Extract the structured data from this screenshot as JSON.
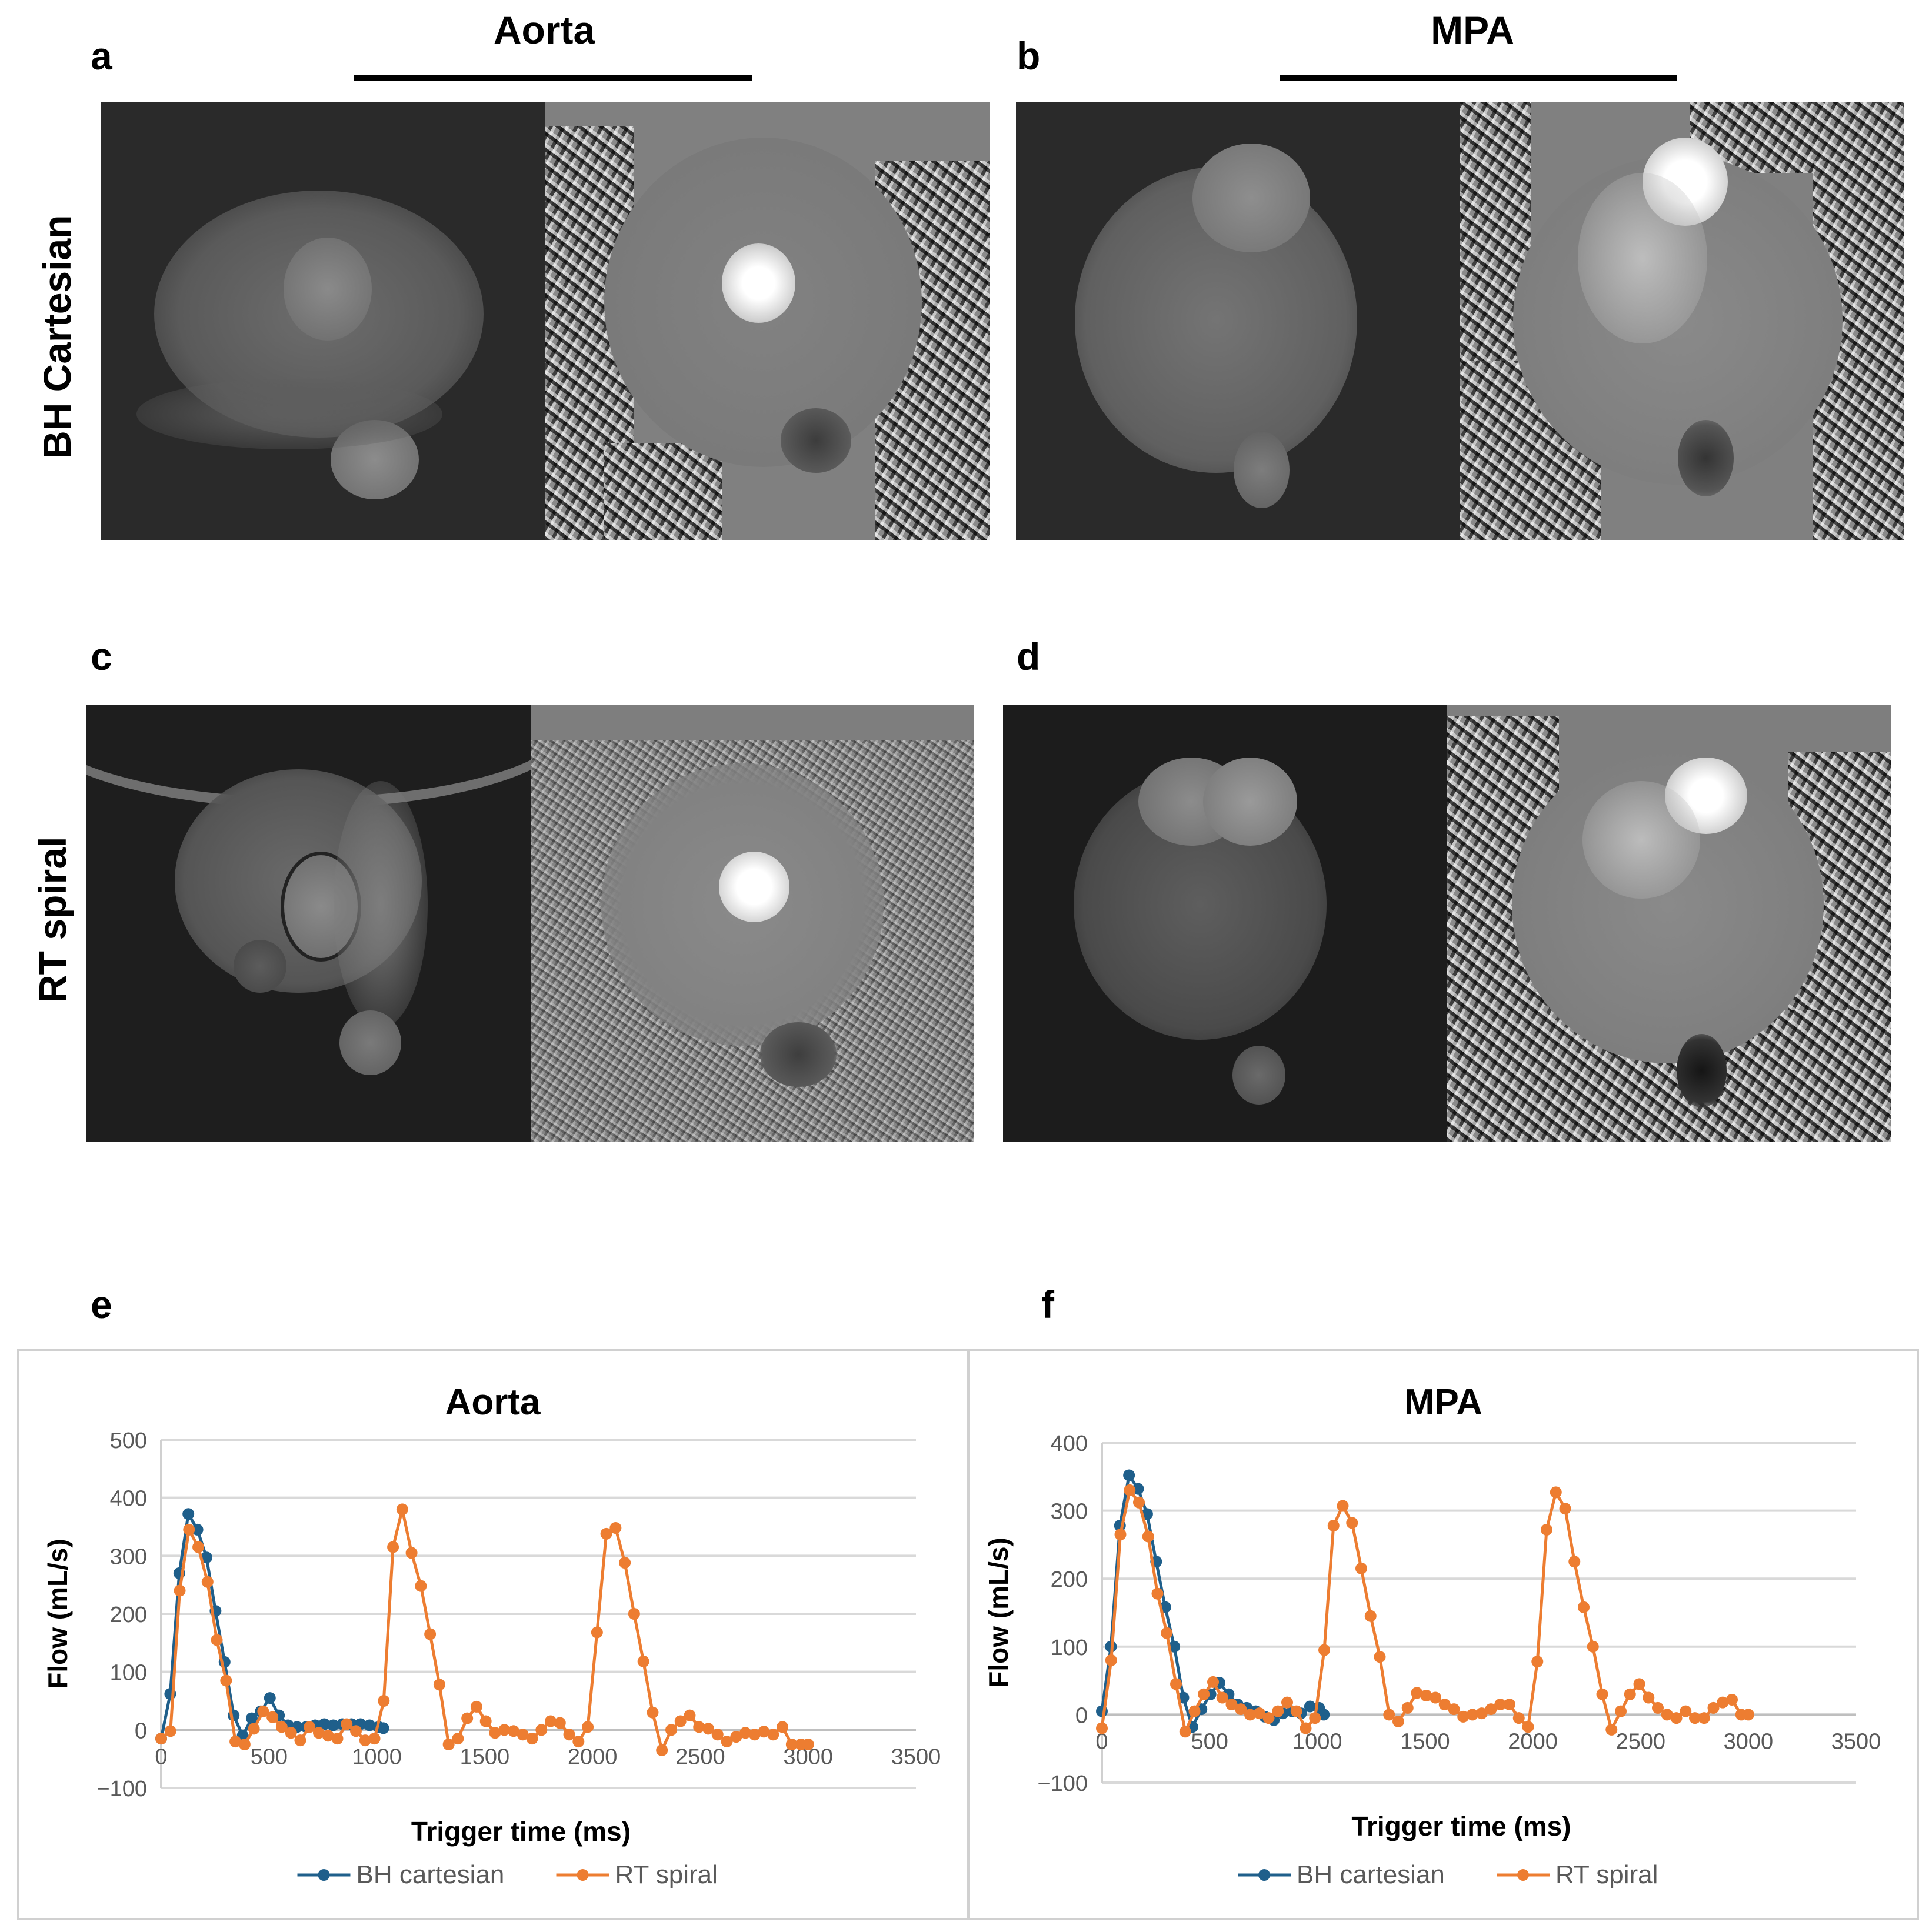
{
  "figure": {
    "panel_letters": {
      "a": "a",
      "b": "b",
      "c": "c",
      "d": "d",
      "e": "e",
      "f": "f"
    },
    "column_titles": {
      "left": "Aorta",
      "right": "MPA"
    },
    "row_labels": {
      "top": "BH Cartesian",
      "bottom": "RT spiral"
    },
    "image_panels": [
      {
        "id": "a",
        "vessel": "Aorta",
        "method": "BH Cartesian",
        "views": [
          "magnitude",
          "phase"
        ]
      },
      {
        "id": "b",
        "vessel": "MPA",
        "method": "BH Cartesian",
        "views": [
          "magnitude",
          "phase"
        ]
      },
      {
        "id": "c",
        "vessel": "Aorta",
        "method": "RT spiral",
        "views": [
          "magnitude",
          "phase"
        ]
      },
      {
        "id": "d",
        "vessel": "MPA",
        "method": "RT spiral",
        "views": [
          "magnitude",
          "phase"
        ]
      }
    ]
  },
  "colors": {
    "bh_cartesian": "#1f5f8b",
    "rt_spiral": "#ed7d31",
    "grid": "#d9d9d9",
    "axis_text": "#595959"
  },
  "chart_data": [
    {
      "id": "e",
      "type": "line",
      "title": "Aorta",
      "xlabel": "Trigger time (ms)",
      "ylabel": "Flow (mL/s)",
      "xlim": [
        0,
        3500
      ],
      "ylim": [
        -100,
        500
      ],
      "xticks": [
        0,
        500,
        1000,
        1500,
        2000,
        2500,
        3000,
        3500
      ],
      "yticks": [
        -100,
        0,
        100,
        200,
        300,
        400,
        500
      ],
      "grid": true,
      "legend_position": "bottom",
      "series": [
        {
          "name": "BH cartesian",
          "color": "#1f5f8b",
          "x": [
            0,
            42,
            84,
            126,
            168,
            210,
            252,
            294,
            336,
            378,
            420,
            462,
            504,
            546,
            588,
            630,
            672,
            714,
            756,
            798,
            840,
            882,
            924,
            966,
            1008,
            1030
          ],
          "y": [
            -15,
            62,
            270,
            372,
            345,
            297,
            205,
            117,
            25,
            -10,
            20,
            32,
            55,
            25,
            8,
            5,
            5,
            8,
            10,
            8,
            10,
            10,
            10,
            8,
            5,
            3
          ]
        },
        {
          "name": "RT spiral",
          "color": "#ed7d31",
          "x": [
            0,
            43,
            86,
            129,
            172,
            215,
            258,
            301,
            344,
            387,
            430,
            473,
            516,
            559,
            602,
            645,
            688,
            731,
            774,
            817,
            860,
            903,
            946,
            989,
            1032,
            1075,
            1118,
            1161,
            1204,
            1247,
            1290,
            1333,
            1376,
            1419,
            1462,
            1505,
            1548,
            1591,
            1634,
            1677,
            1720,
            1763,
            1806,
            1849,
            1892,
            1935,
            1978,
            2021,
            2064,
            2107,
            2150,
            2193,
            2236,
            2279,
            2322,
            2365,
            2408,
            2451,
            2494,
            2537,
            2580,
            2623,
            2666,
            2709,
            2752,
            2795,
            2838,
            2881,
            2924,
            2967,
            3000
          ],
          "y": [
            -15,
            -2,
            240,
            345,
            315,
            255,
            155,
            85,
            -20,
            -25,
            2,
            32,
            22,
            5,
            -5,
            -18,
            5,
            -5,
            -10,
            -15,
            10,
            -2,
            -18,
            -15,
            50,
            315,
            380,
            305,
            248,
            165,
            78,
            -25,
            -15,
            20,
            40,
            15,
            -5,
            0,
            -2,
            -8,
            -15,
            0,
            15,
            12,
            -8,
            -20,
            5,
            168,
            338,
            348,
            288,
            200,
            118,
            30,
            -35,
            0,
            15,
            25,
            5,
            2,
            -8,
            -20,
            -12,
            -5,
            -8,
            -3,
            -8,
            5,
            -25,
            -25,
            -25
          ]
        }
      ]
    },
    {
      "id": "f",
      "type": "line",
      "title": "MPA",
      "xlabel": "Trigger time (ms)",
      "ylabel": "Flow (mL/s)",
      "xlim": [
        0,
        3500
      ],
      "ylim": [
        -100,
        400
      ],
      "xticks": [
        0,
        500,
        1000,
        1500,
        2000,
        2500,
        3000,
        3500
      ],
      "yticks": [
        -100,
        0,
        100,
        200,
        300,
        400
      ],
      "grid": true,
      "legend_position": "bottom",
      "series": [
        {
          "name": "BH cartesian",
          "color": "#1f5f8b",
          "x": [
            0,
            42,
            84,
            126,
            168,
            210,
            252,
            294,
            336,
            378,
            420,
            462,
            504,
            546,
            588,
            630,
            672,
            714,
            756,
            798,
            840,
            882,
            924,
            966,
            1008,
            1030
          ],
          "y": [
            5,
            100,
            278,
            352,
            332,
            295,
            225,
            158,
            100,
            25,
            -18,
            8,
            30,
            47,
            30,
            15,
            10,
            5,
            -3,
            -8,
            2,
            5,
            2,
            12,
            10,
            0
          ]
        },
        {
          "name": "RT spiral",
          "color": "#ed7d31",
          "x": [
            0,
            43,
            86,
            129,
            172,
            215,
            258,
            301,
            344,
            387,
            430,
            473,
            516,
            559,
            602,
            645,
            688,
            731,
            774,
            817,
            860,
            903,
            946,
            989,
            1032,
            1075,
            1118,
            1161,
            1204,
            1247,
            1290,
            1333,
            1376,
            1419,
            1462,
            1505,
            1548,
            1591,
            1634,
            1677,
            1720,
            1763,
            1806,
            1849,
            1892,
            1935,
            1978,
            2021,
            2064,
            2107,
            2150,
            2193,
            2236,
            2279,
            2322,
            2365,
            2408,
            2451,
            2494,
            2537,
            2580,
            2623,
            2666,
            2709,
            2752,
            2795,
            2838,
            2881,
            2924,
            2967,
            3000
          ],
          "y": [
            -20,
            80,
            265,
            330,
            312,
            262,
            178,
            120,
            45,
            -25,
            5,
            30,
            48,
            25,
            15,
            8,
            0,
            2,
            -5,
            5,
            18,
            5,
            -20,
            -5,
            95,
            278,
            307,
            282,
            215,
            145,
            85,
            0,
            -10,
            10,
            32,
            28,
            25,
            15,
            8,
            -3,
            0,
            2,
            8,
            15,
            15,
            -5,
            -18,
            78,
            272,
            327,
            303,
            225,
            158,
            100,
            30,
            -22,
            5,
            30,
            45,
            25,
            10,
            0,
            -5,
            5,
            -5,
            -5,
            10,
            18,
            22,
            0,
            0
          ]
        }
      ]
    }
  ],
  "legend": {
    "items": [
      "BH cartesian",
      "RT spiral"
    ]
  }
}
